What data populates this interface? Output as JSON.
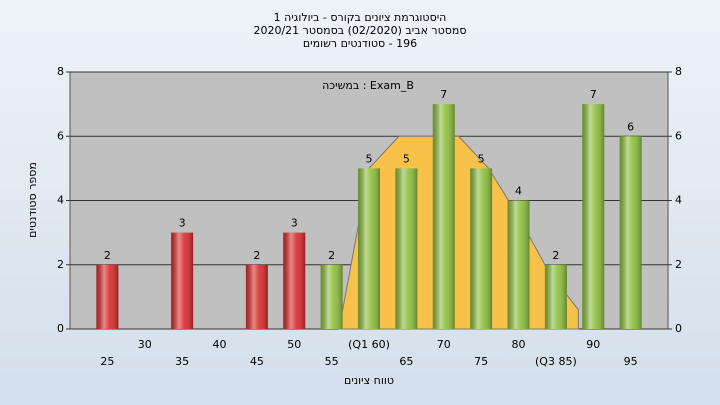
{
  "chart_data": {
    "type": "bar",
    "title": [
      "היסטוגרמת ציונים בקורס - ביולוגיה 1",
      "סמסטר אביב (02/2020) בסמסטר 2020/21",
      "196 - סטודנטים רשומים"
    ],
    "annotation": "Exam_B : במשיכה",
    "xlabel": "טווח ציונים",
    "ylabel": "מספר סטודנטים",
    "categories": [
      25,
      30,
      35,
      40,
      45,
      50,
      55,
      "(Q1 60)",
      65,
      70,
      75,
      80,
      "(Q3 85)",
      90,
      95
    ],
    "values": [
      2,
      0,
      3,
      0,
      2,
      3,
      2,
      5,
      5,
      7,
      5,
      4,
      2,
      7,
      6
    ],
    "colors": [
      "#d92a2a",
      "#d92a2a",
      "#d92a2a",
      "#d92a2a",
      "#d92a2a",
      "#d92a2a",
      "#8cbd3c",
      "#8cbd3c",
      "#8cbd3c",
      "#8cbd3c",
      "#8cbd3c",
      "#8cbd3c",
      "#8cbd3c",
      "#8cbd3c",
      "#8cbd3c"
    ],
    "curve": {
      "color": "#f8c24a",
      "x": [
        56,
        60,
        64,
        72,
        76,
        80,
        84,
        88
      ],
      "values": [
        0,
        5,
        6,
        6,
        5,
        3.5,
        1.8,
        0.6
      ]
    },
    "ylim": [
      0,
      8
    ],
    "yticks": [
      0,
      2,
      4,
      6,
      8
    ],
    "grid": true
  }
}
